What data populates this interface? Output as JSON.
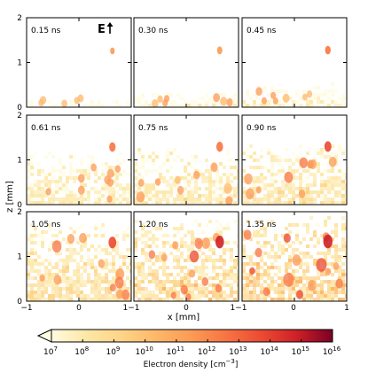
{
  "chart_data": {
    "type": "heatmap",
    "title": "",
    "field_label": "E",
    "xlabel": "x [mm]",
    "ylabel": "z [mm]",
    "xlim": [
      -1,
      1
    ],
    "ylim": [
      0,
      2
    ],
    "x_ticks": [
      "−1",
      "0",
      "1"
    ],
    "x_ticks_bottom": [
      "−1",
      "0",
      "1−1",
      "0",
      "1−1",
      "0",
      "1"
    ],
    "y_ticks": [
      "0",
      "1",
      "2"
    ],
    "panels": [
      {
        "label": "0.15 ns",
        "fill_height_mm": 0.18,
        "level": 0.15
      },
      {
        "label": "0.30 ns",
        "fill_height_mm": 0.3,
        "level": 0.25
      },
      {
        "label": "0.45 ns",
        "fill_height_mm": 0.45,
        "level": 0.3
      },
      {
        "label": "0.61 ns",
        "fill_height_mm": 1.1,
        "level": 0.4
      },
      {
        "label": "0.75 ns",
        "fill_height_mm": 1.2,
        "level": 0.45
      },
      {
        "label": "0.90 ns",
        "fill_height_mm": 1.3,
        "level": 0.5
      },
      {
        "label": "1.05 ns",
        "fill_height_mm": 1.7,
        "level": 0.6
      },
      {
        "label": "1.20 ns",
        "fill_height_mm": 1.75,
        "level": 0.7
      },
      {
        "label": "1.35 ns",
        "fill_height_mm": 1.85,
        "level": 0.8
      }
    ],
    "colorbar": {
      "label": "Electron density [cm",
      "label_sup": "−3",
      "label_end": "]",
      "ticks": [
        "7",
        "8",
        "9",
        "10",
        "11",
        "12",
        "13",
        "14",
        "15",
        "16"
      ],
      "tick_base": "10",
      "range_log10": [
        7,
        16
      ],
      "extend": "min",
      "colors": [
        "#fffbe0",
        "#fde8a8",
        "#fdd487",
        "#fdb869",
        "#fc9a55",
        "#f87443",
        "#ea4a33",
        "#cf2127",
        "#a80d26",
        "#7a0025"
      ]
    }
  }
}
